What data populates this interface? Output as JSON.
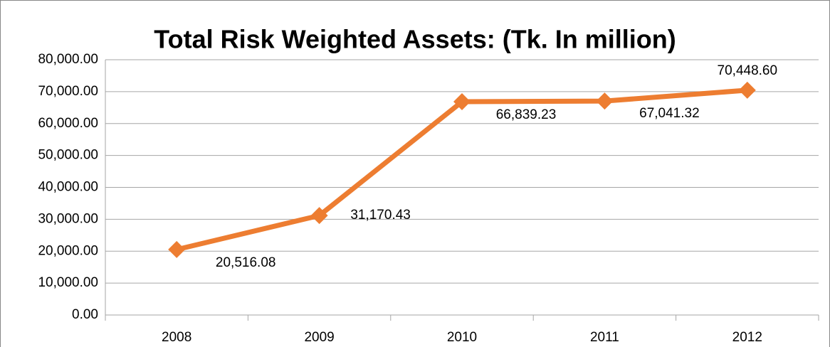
{
  "chart_data": {
    "type": "line",
    "title": "Total Risk Weighted Assets: (Tk. In million)",
    "categories": [
      "2008",
      "2009",
      "2010",
      "2011",
      "2012"
    ],
    "values": [
      20516.08,
      31170.43,
      66839.23,
      67041.32,
      70448.6
    ],
    "value_labels": [
      "20,516.08",
      "31,170.43",
      "66,839.23",
      "67,041.32",
      "70,448.60"
    ],
    "color": "#ed7d31",
    "ylim": [
      0,
      80000
    ],
    "yticks": [
      {
        "value": 0,
        "label": "0.00"
      },
      {
        "value": 10000,
        "label": "10,000.00"
      },
      {
        "value": 20000,
        "label": "20,000.00"
      },
      {
        "value": 30000,
        "label": "30,000.00"
      },
      {
        "value": 40000,
        "label": "40,000.00"
      },
      {
        "value": 50000,
        "label": "50,000.00"
      },
      {
        "value": 60000,
        "label": "60,000.00"
      },
      {
        "value": 70000,
        "label": "70,000.00"
      },
      {
        "value": 80000,
        "label": "80,000.00"
      }
    ],
    "grid": true
  }
}
